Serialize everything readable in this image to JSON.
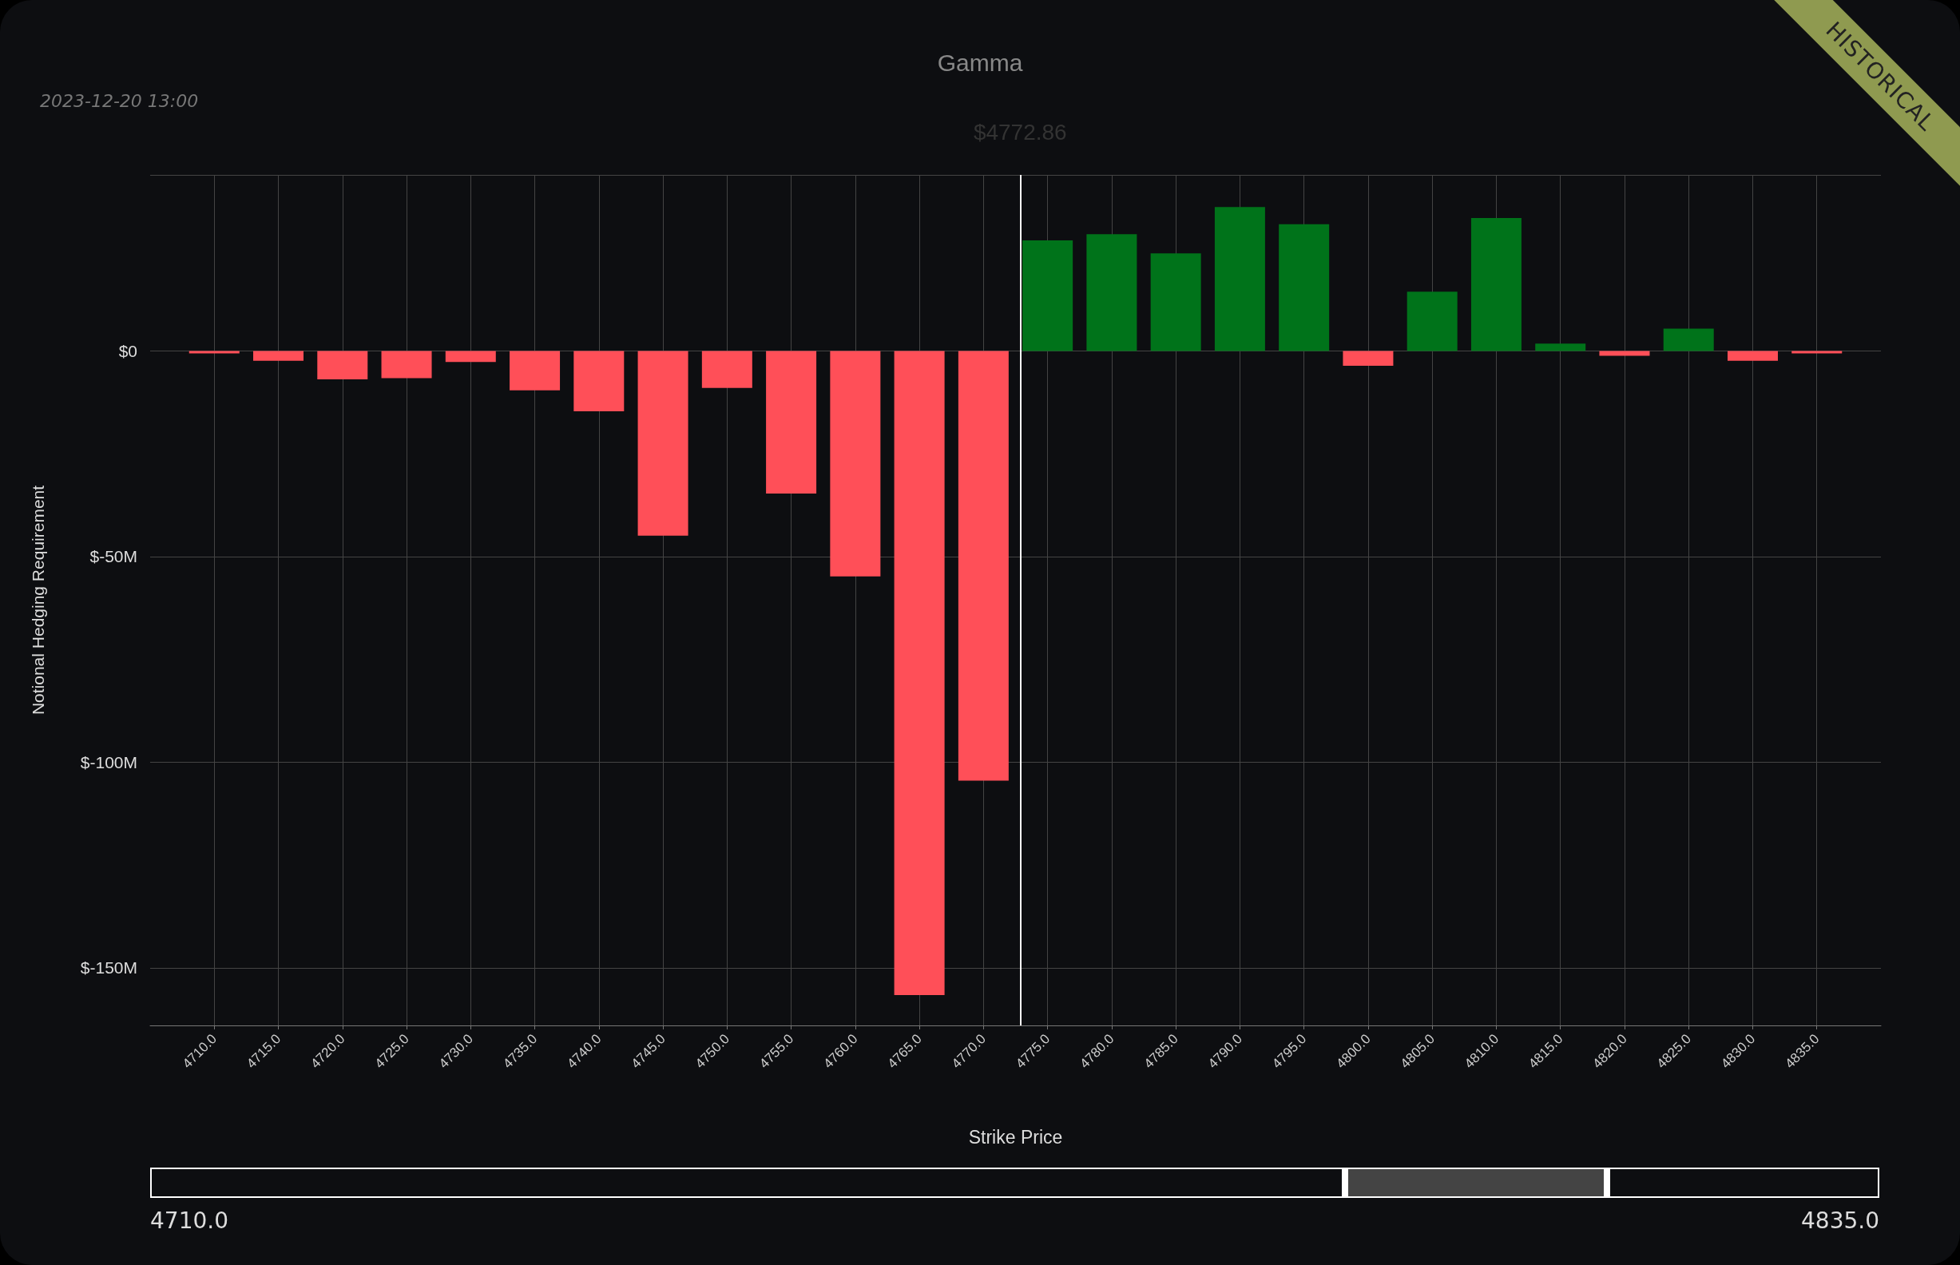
{
  "chart_data": {
    "type": "bar",
    "title": "Gamma",
    "xlabel": "Strike Price",
    "ylabel": "Notional Hedging Requirement",
    "annotations": [
      "2023-12-20 13:00",
      "HISTORICAL",
      "4710.0",
      "4835.0"
    ],
    "x": [
      4710,
      4715,
      4720,
      4725,
      4730,
      4735,
      4740,
      4745,
      4750,
      4755,
      4760,
      4765,
      4770,
      4775,
      4780,
      4785,
      4790,
      4795,
      4800,
      4805,
      4810,
      4815,
      4820,
      4825,
      4830,
      4835
    ],
    "values": [
      -0.6,
      -2.4,
      -6.9,
      -6.6,
      -2.7,
      -9.6,
      -14.7,
      -44.9,
      -9.0,
      -34.7,
      -54.8,
      -156.6,
      -104.5,
      26.9,
      28.4,
      23.7,
      35.0,
      30.8,
      -3.6,
      14.4,
      32.3,
      1.8,
      -1.2,
      5.4,
      -2.4,
      -0.6
    ],
    "colors": [
      "#ff4f58",
      "#ff4f58",
      "#ff4f58",
      "#ff4f58",
      "#ff4f58",
      "#ff4f58",
      "#ff4f58",
      "#ff4f58",
      "#ff4f58",
      "#ff4f58",
      "#ff4f58",
      "#ff4f58",
      "#ff4f58",
      "#00731a",
      "#00731a",
      "#00731a",
      "#00731a",
      "#00731a",
      "#ff4f58",
      "#00731a",
      "#00731a",
      "#00731a",
      "#ff4f58",
      "#00731a",
      "#ff4f58",
      "#ff4f58"
    ],
    "xlim": [
      4705,
      4840
    ],
    "xticks": [
      {
        "value": 4710,
        "label": "4710.0"
      },
      {
        "value": 4715,
        "label": "4715.0"
      },
      {
        "value": 4720,
        "label": "4720.0"
      },
      {
        "value": 4725,
        "label": "4725.0"
      },
      {
        "value": 4730,
        "label": "4730.0"
      },
      {
        "value": 4735,
        "label": "4735.0"
      },
      {
        "value": 4740,
        "label": "4740.0"
      },
      {
        "value": 4745,
        "label": "4745.0"
      },
      {
        "value": 4750,
        "label": "4750.0"
      },
      {
        "value": 4755,
        "label": "4755.0"
      },
      {
        "value": 4760,
        "label": "4760.0"
      },
      {
        "value": 4765,
        "label": "4765.0"
      },
      {
        "value": 4770,
        "label": "4770.0"
      },
      {
        "value": 4775,
        "label": "4775.0"
      },
      {
        "value": 4780,
        "label": "4780.0"
      },
      {
        "value": 4785,
        "label": "4785.0"
      },
      {
        "value": 4790,
        "label": "4790.0"
      },
      {
        "value": 4795,
        "label": "4795.0"
      },
      {
        "value": 4800,
        "label": "4800.0"
      },
      {
        "value": 4805,
        "label": "4805.0"
      },
      {
        "value": 4810,
        "label": "4810.0"
      },
      {
        "value": 4815,
        "label": "4815.0"
      },
      {
        "value": 4820,
        "label": "4820.0"
      },
      {
        "value": 4825,
        "label": "4825.0"
      },
      {
        "value": 4830,
        "label": "4830.0"
      },
      {
        "value": 4835,
        "label": "4835.0"
      }
    ],
    "ylim": [
      -164,
      42.8
    ],
    "yticks": [
      {
        "value": -150,
        "label": "$-150M"
      },
      {
        "value": -100,
        "label": "$-100M"
      },
      {
        "value": -50,
        "label": "$-50M"
      },
      {
        "value": 0,
        "label": "$0"
      }
    ],
    "ref_lines": [
      {
        "axis": "x",
        "value": 4772.86,
        "label": "$4772.86",
        "color": "#ffffff"
      }
    ],
    "grid": true
  }
}
